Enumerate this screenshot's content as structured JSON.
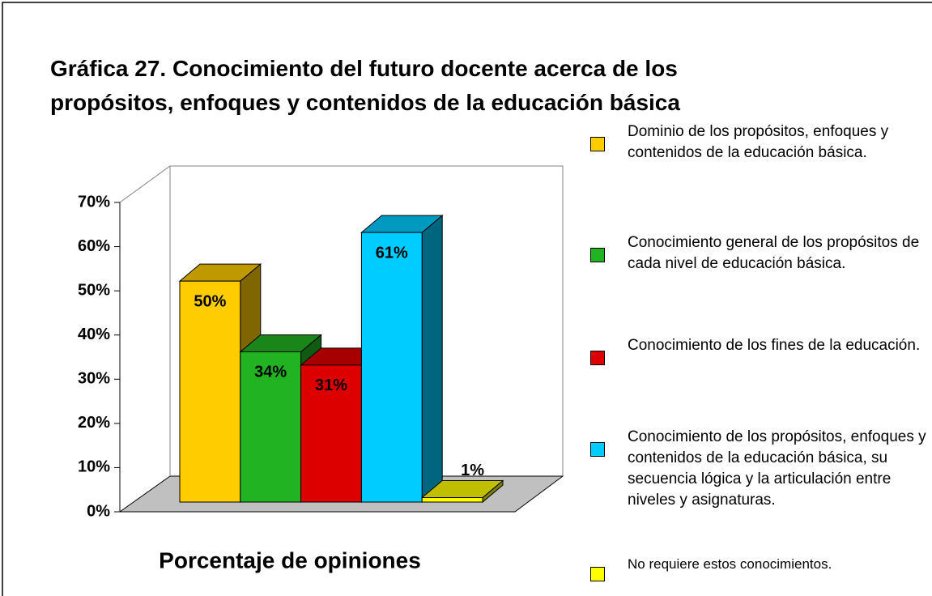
{
  "chart_data": {
    "type": "bar3d",
    "title": "Gráfica 27. Conocimiento del futuro docente acerca de los\npropósitos, enfoques y contenidos de la educación básica",
    "categories": [
      "Porcentaje de opiniones"
    ],
    "series": [
      {
        "name": "Dominio de los propósitos, enfoques y contenidos de la educación básica.",
        "color": "#FFCC00",
        "values": [
          50
        ],
        "value_labels": [
          "50%"
        ]
      },
      {
        "name": "Conocimiento general de los propósitos de cada nivel de educación básica.",
        "color": "#22B322",
        "values": [
          34
        ],
        "value_labels": [
          "34%"
        ]
      },
      {
        "name": "Conocimiento de los fines de la educación.",
        "color": "#DD0000",
        "values": [
          31
        ],
        "value_labels": [
          "31%"
        ]
      },
      {
        "name": "Conocimiento de los propósitos, enfoques y contenidos de la educación básica, su secuencia lógica y la articulación entre niveles y asignaturas.",
        "color": "#00CCFF",
        "values": [
          61
        ],
        "value_labels": [
          "61%"
        ]
      },
      {
        "name": "No requiere estos conocimientos.",
        "color": "#FFFF00",
        "values": [
          1
        ],
        "value_labels": [
          "1%"
        ]
      }
    ],
    "ylim": [
      0,
      70
    ],
    "yticks": [
      {
        "value": 0,
        "label": "0%"
      },
      {
        "value": 10,
        "label": "10%"
      },
      {
        "value": 20,
        "label": "20%"
      },
      {
        "value": 30,
        "label": "30%"
      },
      {
        "value": 40,
        "label": "40%"
      },
      {
        "value": 50,
        "label": "50%"
      },
      {
        "value": 60,
        "label": "60%"
      },
      {
        "value": 70,
        "label": "70%"
      }
    ],
    "grid": false,
    "legend": "right"
  }
}
